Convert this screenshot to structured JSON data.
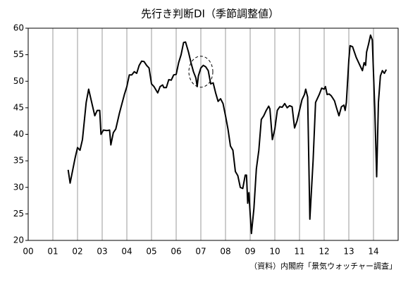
{
  "chart_data": {
    "type": "line",
    "title": "先行き判断DI（季節調整値）",
    "source": "（資料）内閣府「景気ウォッチャー調査」",
    "xlim": [
      0,
      15
    ],
    "ylim": [
      20,
      60
    ],
    "xticks": [
      {
        "value": 0,
        "label": "00"
      },
      {
        "value": 1,
        "label": "01"
      },
      {
        "value": 2,
        "label": "02"
      },
      {
        "value": 3,
        "label": "03"
      },
      {
        "value": 4,
        "label": "04"
      },
      {
        "value": 5,
        "label": "05"
      },
      {
        "value": 6,
        "label": "06"
      },
      {
        "value": 7,
        "label": "07"
      },
      {
        "value": 8,
        "label": "08"
      },
      {
        "value": 9,
        "label": "09"
      },
      {
        "value": 10,
        "label": "10"
      },
      {
        "value": 11,
        "label": "11"
      },
      {
        "value": 12,
        "label": "12"
      },
      {
        "value": 13,
        "label": "13"
      },
      {
        "value": 14,
        "label": "14"
      }
    ],
    "yticks": [
      20,
      25,
      30,
      35,
      40,
      45,
      50,
      55,
      60
    ],
    "grid": "x",
    "series": [
      {
        "color": "#000000",
        "x": [
          1.62,
          1.7,
          1.9,
          2.0,
          2.1,
          2.2,
          2.35,
          2.45,
          2.6,
          2.7,
          2.8,
          2.9,
          2.95,
          3.05,
          3.2,
          3.3,
          3.35,
          3.45,
          3.55,
          3.7,
          3.9,
          4.0,
          4.1,
          4.2,
          4.3,
          4.4,
          4.5,
          4.6,
          4.7,
          4.8,
          4.9,
          5.0,
          5.1,
          5.25,
          5.35,
          5.45,
          5.5,
          5.6,
          5.7,
          5.8,
          5.9,
          6.0,
          6.1,
          6.2,
          6.3,
          6.38,
          6.5,
          6.6,
          6.7,
          6.8,
          6.85,
          6.9,
          7.0,
          7.1,
          7.2,
          7.3,
          7.4,
          7.5,
          7.6,
          7.7,
          7.8,
          7.9,
          8.0,
          8.1,
          8.2,
          8.3,
          8.4,
          8.5,
          8.6,
          8.7,
          8.8,
          8.85,
          8.9,
          8.95,
          9.0,
          9.05,
          9.15,
          9.25,
          9.35,
          9.45,
          9.55,
          9.65,
          9.75,
          9.8,
          9.9,
          10.0,
          10.1,
          10.2,
          10.3,
          10.4,
          10.5,
          10.6,
          10.7,
          10.8,
          10.9,
          11.0,
          11.1,
          11.2,
          11.25,
          11.33,
          11.42,
          11.55,
          11.65,
          11.8,
          11.9,
          12.0,
          12.05,
          12.12,
          12.2,
          12.28,
          12.35,
          12.42,
          12.5,
          12.6,
          12.7,
          12.8,
          12.85,
          12.9,
          13.0,
          13.05,
          13.15,
          13.3,
          13.45,
          13.55,
          13.62,
          13.68,
          13.72,
          13.8,
          13.88,
          13.95,
          14.05,
          14.13,
          14.2,
          14.28,
          14.36,
          14.44,
          14.52
        ],
        "values": [
          33.3,
          30.8,
          35.5,
          37.5,
          37,
          39,
          46,
          48.5,
          45.5,
          43.5,
          44.5,
          44.5,
          40,
          40.8,
          40.7,
          40.8,
          38,
          40.3,
          41,
          44,
          47.5,
          49,
          51.2,
          51.2,
          51.8,
          51.5,
          53,
          53.8,
          53.7,
          53,
          52.5,
          49.5,
          49,
          47.8,
          49,
          49.3,
          48.8,
          48.8,
          50.3,
          50.2,
          51.2,
          51.3,
          53.5,
          55,
          57.3,
          57.4,
          55.5,
          53.5,
          51.8,
          50.6,
          49,
          51,
          52.5,
          53,
          52.7,
          52,
          49.5,
          49.7,
          47.8,
          46.2,
          46.7,
          45.8,
          43.5,
          41,
          37.8,
          37,
          33,
          32.2,
          30,
          29.8,
          32.3,
          32.3,
          27,
          29,
          25,
          21.3,
          26,
          33.5,
          37,
          42.8,
          43.5,
          44.5,
          45.3,
          44.8,
          39,
          41,
          44.5,
          45.2,
          45.1,
          45.8,
          45,
          45.4,
          45.2,
          41.2,
          42.5,
          44.5,
          46.5,
          47.5,
          48.5,
          47,
          24,
          35,
          46,
          47.5,
          48.7,
          48.5,
          49,
          47.5,
          47.6,
          47.3,
          46.8,
          46.3,
          45,
          43.5,
          45.2,
          45.5,
          44.5,
          46,
          54,
          56.7,
          56.5,
          54.5,
          53,
          52,
          53.5,
          53,
          55.5,
          57,
          58.7,
          57.8,
          45,
          32,
          46,
          51,
          52,
          51.5,
          52.2
        ]
      }
    ]
  }
}
